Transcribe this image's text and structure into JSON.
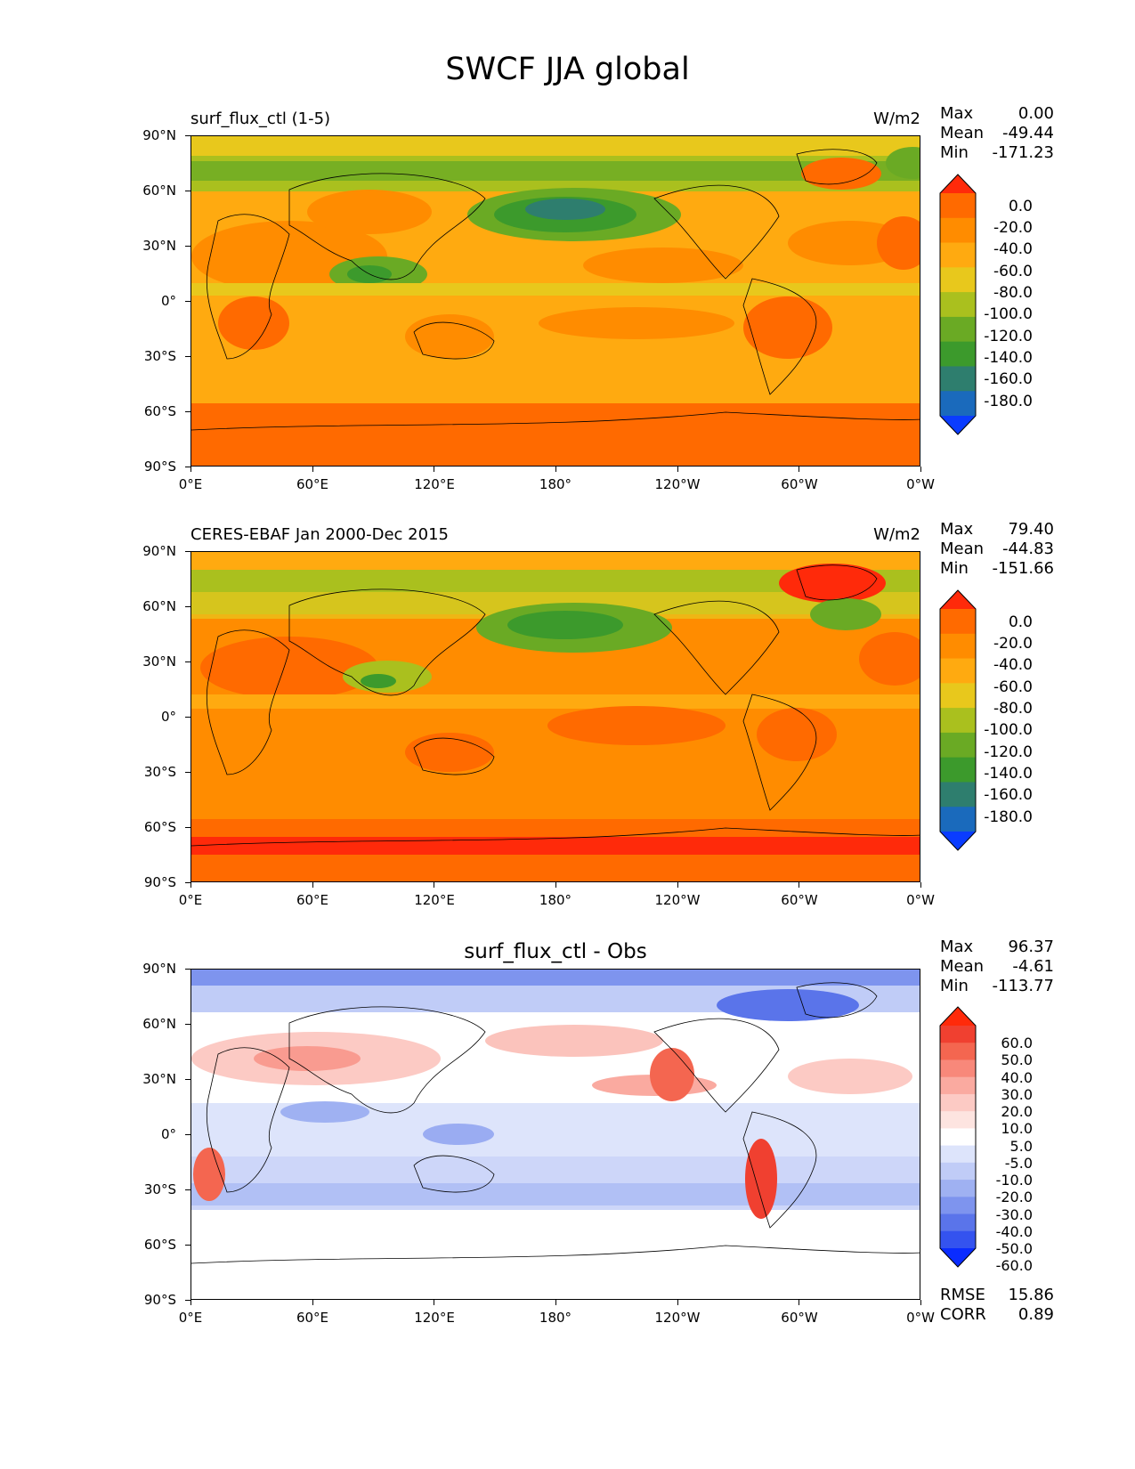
{
  "title": "SWCF JJA global",
  "x_ticks": [
    "0°E",
    "60°E",
    "120°E",
    "180°",
    "120°W",
    "60°W",
    "0°W"
  ],
  "y_ticks": [
    "90°N",
    "60°N",
    "30°N",
    "0°",
    "30°S",
    "60°S",
    "90°S"
  ],
  "panels": [
    {
      "left_title": "surf_flux_ctl (1-5)",
      "right_title": "W/m2",
      "stats": {
        "max_label": "Max",
        "max": "0.00",
        "mean_label": "Mean",
        "mean": "-49.44",
        "min_label": "Min",
        "min": "-171.23"
      },
      "colorbar": [
        "0.0",
        "-20.0",
        "-40.0",
        "-60.0",
        "-80.0",
        "-100.0",
        "-120.0",
        "-140.0",
        "-160.0",
        "-180.0"
      ],
      "colorbar_colors": [
        "#ff2a0a",
        "#ff6a00",
        "#ff8c00",
        "#ffaa10",
        "#e8c81c",
        "#aac01e",
        "#6aaa24",
        "#3c9a2c",
        "#2e7e6e",
        "#1a6abc",
        "#0a3cff"
      ]
    },
    {
      "left_title": "CERES-EBAF Jan 2000-Dec 2015",
      "right_title": "W/m2",
      "stats": {
        "max_label": "Max",
        "max": "79.40",
        "mean_label": "Mean",
        "mean": "-44.83",
        "min_label": "Min",
        "min": "-151.66"
      },
      "colorbar": [
        "0.0",
        "-20.0",
        "-40.0",
        "-60.0",
        "-80.0",
        "-100.0",
        "-120.0",
        "-140.0",
        "-160.0",
        "-180.0"
      ],
      "colorbar_colors": [
        "#ff2a0a",
        "#ff6a00",
        "#ff8c00",
        "#ffaa10",
        "#e8c81c",
        "#aac01e",
        "#6aaa24",
        "#3c9a2c",
        "#2e7e6e",
        "#1a6abc",
        "#0a3cff"
      ]
    },
    {
      "center_title": "surf_flux_ctl - Obs",
      "stats": {
        "max_label": "Max",
        "max": "96.37",
        "mean_label": "Mean",
        "mean": "-4.61",
        "min_label": "Min",
        "min": "-113.77"
      },
      "rmse_label": "RMSE",
      "rmse": "15.86",
      "corr_label": "CORR",
      "corr": "0.89",
      "colorbar": [
        "60.0",
        "50.0",
        "40.0",
        "30.0",
        "20.0",
        "10.0",
        "5.0",
        "-5.0",
        "-10.0",
        "-20.0",
        "-30.0",
        "-40.0",
        "-50.0",
        "-60.0"
      ],
      "colorbar_colors": [
        "#ff2a0a",
        "#f04030",
        "#f46650",
        "#f8887a",
        "#faaaa0",
        "#fccac4",
        "#fde4e0",
        "#ffffff",
        "#dde4fb",
        "#c0ccf7",
        "#9fb1f2",
        "#7e94ee",
        "#5a74ea",
        "#3453ef",
        "#0a2cff"
      ]
    }
  ],
  "chart_data": {
    "type": "heatmap",
    "title": "SWCF JJA global",
    "units": "W/m2",
    "x_range": [
      "0°E",
      "0°W"
    ],
    "y_range": [
      "90°S",
      "90°N"
    ],
    "fields": [
      {
        "name": "surf_flux_ctl (1-5)",
        "max": 0.0,
        "mean": -49.44,
        "min": -171.23,
        "levels": [
          0,
          -20,
          -40,
          -60,
          -80,
          -100,
          -120,
          -140,
          -160,
          -180
        ]
      },
      {
        "name": "CERES-EBAF Jan 2000-Dec 2015",
        "max": 79.4,
        "mean": -44.83,
        "min": -151.66,
        "levels": [
          0,
          -20,
          -40,
          -60,
          -80,
          -100,
          -120,
          -140,
          -160,
          -180
        ]
      },
      {
        "name": "surf_flux_ctl - Obs",
        "max": 96.37,
        "mean": -4.61,
        "min": -113.77,
        "rmse": 15.86,
        "corr": 0.89,
        "levels": [
          60,
          50,
          40,
          30,
          20,
          10,
          5,
          -5,
          -10,
          -20,
          -30,
          -40,
          -50,
          -60
        ]
      }
    ]
  }
}
